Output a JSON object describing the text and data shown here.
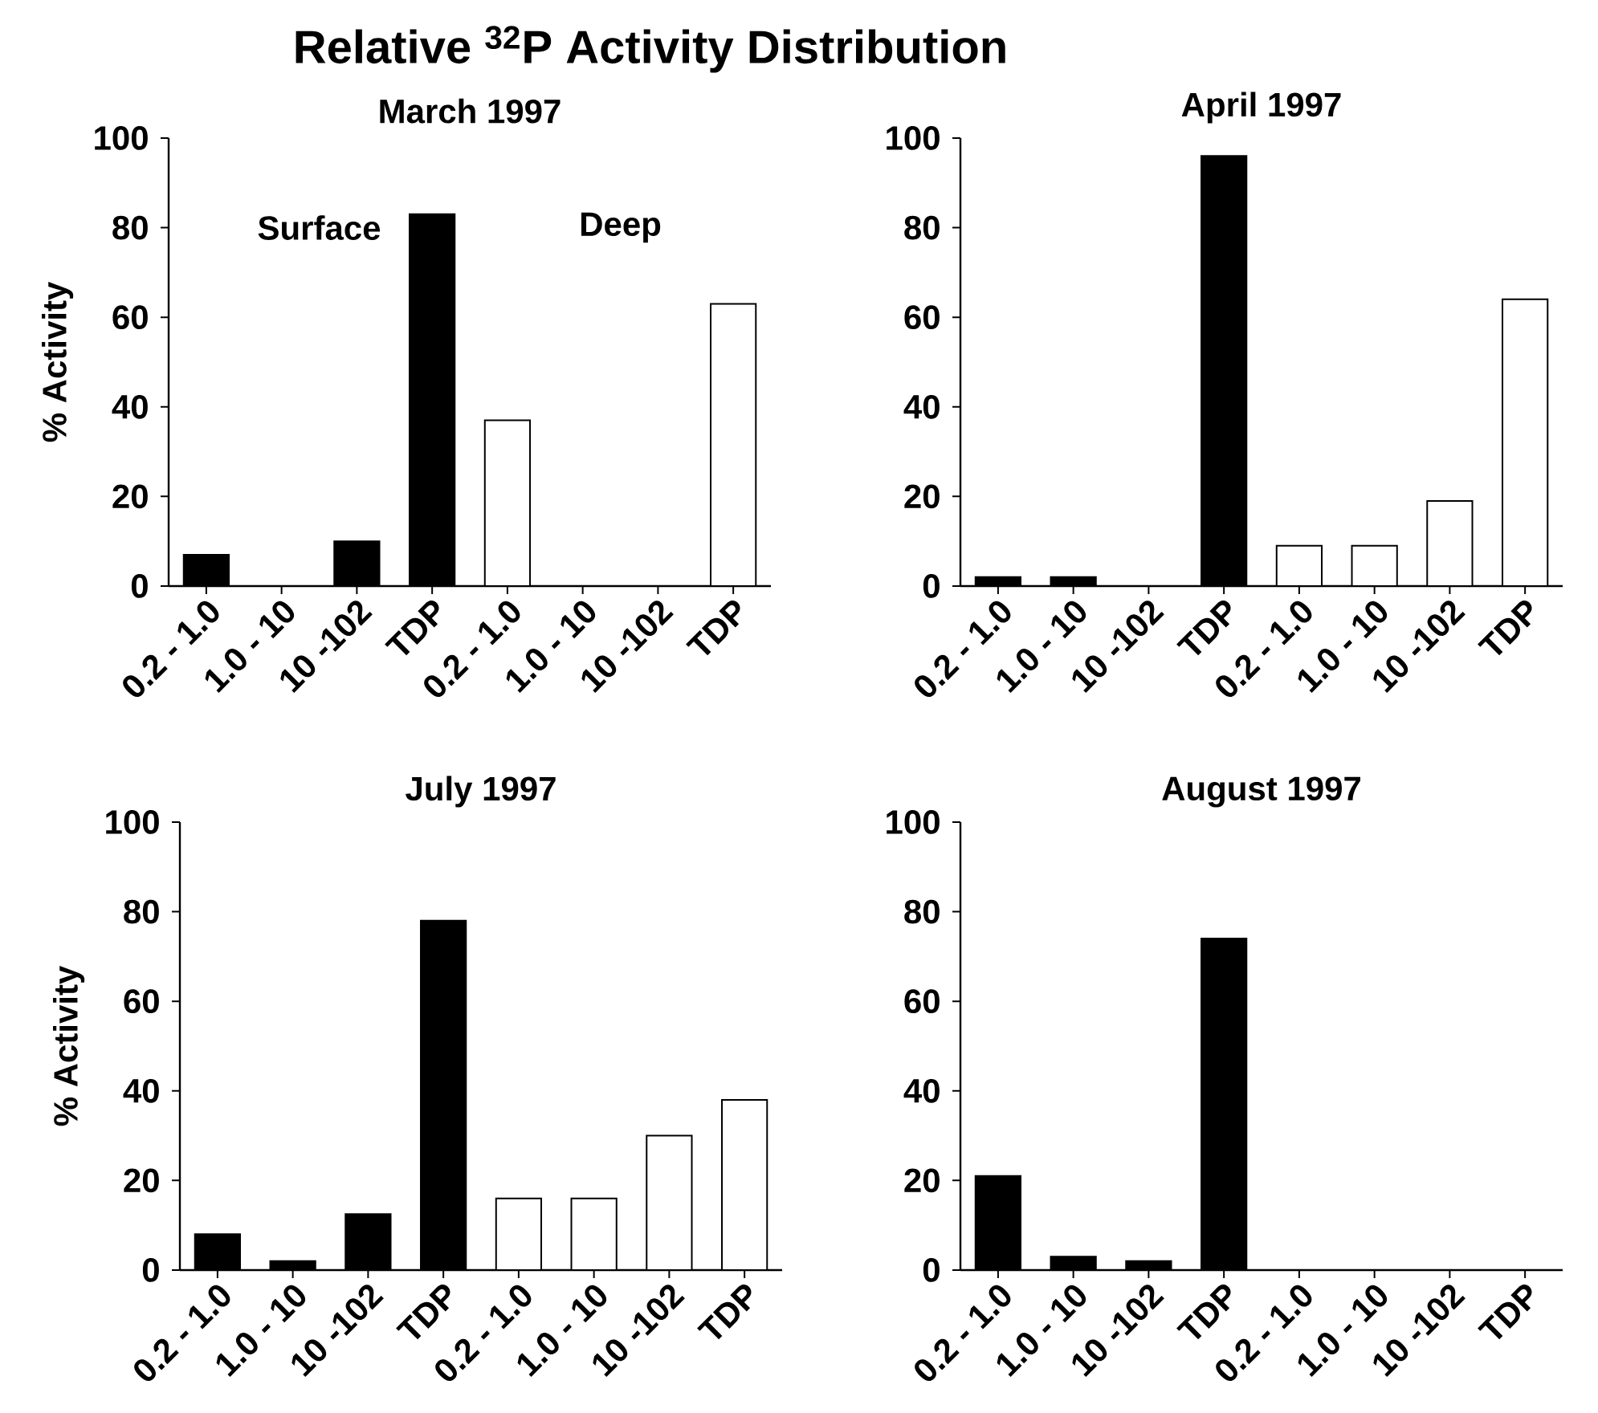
{
  "chart_data": [
    {
      "type": "bar",
      "title": "March 1997",
      "ylabel": "% Activity",
      "categories": [
        "0.2 - 1.0",
        "1.0 - 10",
        "10 -102",
        "TDP",
        "0.2 - 1.0",
        "1.0 - 10",
        "10 -102",
        "TDP"
      ],
      "values": [
        7,
        0,
        10,
        83,
        37,
        0,
        0,
        63
      ],
      "colors": [
        "#000000",
        "#000000",
        "#000000",
        "#000000",
        "#ffffff",
        "#ffffff",
        "#ffffff",
        "#ffffff"
      ],
      "ylim": [
        0,
        100
      ],
      "yticks": [
        0,
        20,
        40,
        60,
        80,
        100
      ],
      "annotations": [
        "Relative $^{32}$P Activity Distribution",
        "Surface",
        "Deep"
      ]
    },
    {
      "type": "bar",
      "title": "April 1997",
      "categories": [
        "0.2 - 1.0",
        "1.0 - 10",
        "10 -102",
        "TDP",
        "0.2 - 1.0",
        "1.0 - 10",
        "10 -102",
        "TDP"
      ],
      "values": [
        2,
        2,
        0,
        96,
        9,
        9,
        19,
        64
      ],
      "colors": [
        "#000000",
        "#000000",
        "#000000",
        "#000000",
        "#ffffff",
        "#ffffff",
        "#ffffff",
        "#ffffff"
      ],
      "ylim": [
        0,
        100
      ],
      "yticks": [
        0,
        20,
        40,
        60,
        80,
        100
      ]
    },
    {
      "type": "bar",
      "title": "July 1997",
      "ylabel": "% Activity",
      "categories": [
        "0.2 - 1.0",
        "1.0 - 10",
        "10 -102",
        "TDP",
        "0.2 - 1.0",
        "1.0 - 10",
        "10 -102",
        "TDP"
      ],
      "values": [
        8,
        2,
        12.5,
        78,
        16,
        16,
        30,
        38
      ],
      "colors": [
        "#000000",
        "#000000",
        "#000000",
        "#000000",
        "#ffffff",
        "#ffffff",
        "#ffffff",
        "#ffffff"
      ],
      "ylim": [
        0,
        100
      ],
      "yticks": [
        0,
        20,
        40,
        60,
        80,
        100
      ]
    },
    {
      "type": "bar",
      "title": "August 1997",
      "categories": [
        "0.2 - 1.0",
        "1.0 - 10",
        "10 -102",
        "TDP",
        "0.2 - 1.0",
        "1.0 - 10",
        "10 -102",
        "TDP"
      ],
      "values": [
        21,
        3,
        2,
        74,
        0,
        0,
        0,
        0
      ],
      "colors": [
        "#000000",
        "#000000",
        "#000000",
        "#000000",
        "#ffffff",
        "#ffffff",
        "#ffffff",
        "#ffffff"
      ],
      "ylim": [
        0,
        100
      ],
      "yticks": [
        0,
        20,
        40,
        60,
        80,
        100
      ]
    }
  ]
}
